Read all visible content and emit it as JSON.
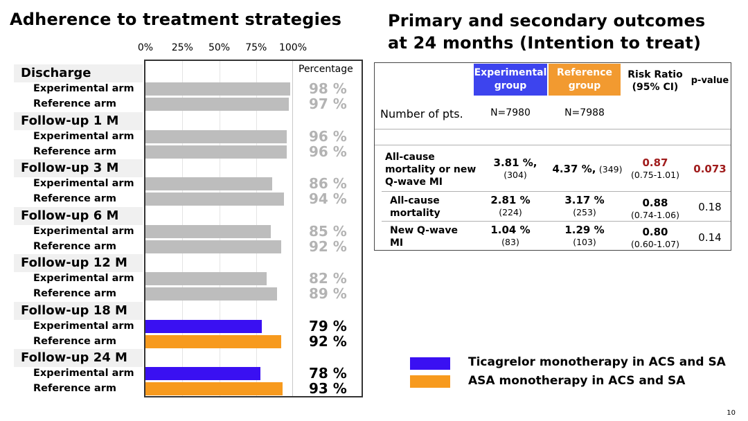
{
  "left_title": "Adherence to treatment strategies",
  "right_title_line1": "Primary and secondary outcomes",
  "right_title_line2": "at 24 months (Intention to treat)",
  "page_number": "10",
  "colors": {
    "gray": "#bdbdbd",
    "experimental": "#3a10f2",
    "reference": "#f79a1e",
    "red_value": "#a01c1c",
    "exp_header": "#3d44ee",
    "ref_header": "#f29a30"
  },
  "chart_data": {
    "type": "bar",
    "orientation": "horizontal",
    "title": "Adherence to treatment strategies",
    "column_header": "Percentage",
    "xlim": [
      0,
      100
    ],
    "x_ticks": [
      "0%",
      "25%",
      "50%",
      "75%",
      "100%"
    ],
    "groups": [
      {
        "label": "Discharge",
        "bars": [
          {
            "arm": "Experimental arm",
            "value": 98,
            "label": "98 %",
            "color": "gray"
          },
          {
            "arm": "Reference arm",
            "value": 97,
            "label": "97 %",
            "color": "gray"
          }
        ]
      },
      {
        "label": "Follow-up 1 M",
        "bars": [
          {
            "arm": "Experimental arm",
            "value": 96,
            "label": "96 %",
            "color": "gray"
          },
          {
            "arm": "Reference arm",
            "value": 96,
            "label": "96 %",
            "color": "gray"
          }
        ]
      },
      {
        "label": "Follow-up 3 M",
        "bars": [
          {
            "arm": "Experimental arm",
            "value": 86,
            "label": "86 %",
            "color": "gray"
          },
          {
            "arm": "Reference arm",
            "value": 94,
            "label": "94 %",
            "color": "gray"
          }
        ]
      },
      {
        "label": "Follow-up 6 M",
        "bars": [
          {
            "arm": "Experimental arm",
            "value": 85,
            "label": "85 %",
            "color": "gray"
          },
          {
            "arm": "Reference arm",
            "value": 92,
            "label": "92 %",
            "color": "gray"
          }
        ]
      },
      {
        "label": "Follow-up 12 M",
        "bars": [
          {
            "arm": "Experimental arm",
            "value": 82,
            "label": "82 %",
            "color": "gray"
          },
          {
            "arm": "Reference arm",
            "value": 89,
            "label": "89 %",
            "color": "gray"
          }
        ]
      },
      {
        "label": "Follow-up 18 M",
        "bars": [
          {
            "arm": "Experimental arm",
            "value": 79,
            "label": "79 %",
            "color": "experimental"
          },
          {
            "arm": "Reference arm",
            "value": 92,
            "label": "92 %",
            "color": "reference"
          }
        ]
      },
      {
        "label": "Follow-up 24 M",
        "bars": [
          {
            "arm": "Experimental arm",
            "value": 78,
            "label": "78 %",
            "color": "experimental"
          },
          {
            "arm": "Reference arm",
            "value": 93,
            "label": "93 %",
            "color": "reference"
          }
        ]
      }
    ]
  },
  "table": {
    "headers": {
      "experimental": "Experimental group",
      "reference": "Reference group",
      "risk_ratio": "Risk Ratio (95% CI)",
      "p_value": "p-value"
    },
    "number_of_pts": {
      "label": "Number of pts.",
      "experimental": "N=7980",
      "reference": "N=7988"
    },
    "rows": [
      {
        "label": "All-cause mortality or new Q-wave MI",
        "exp_pct": "3.81 %,",
        "exp_n": "(304)",
        "ref_pct": "4.37 %,",
        "ref_n": "(349)",
        "rr": "0.87",
        "ci": "(0.75-1.01)",
        "p": "0.073"
      },
      {
        "label": "All-cause mortality",
        "exp_pct": "2.81 %",
        "exp_n": "(224)",
        "ref_pct": "3.17 %",
        "ref_n": "(253)",
        "rr": "0.88",
        "ci": "(0.74-1.06)",
        "p": "0.18"
      },
      {
        "label": "New Q-wave MI",
        "exp_pct": "1.04 %",
        "exp_n": "(83)",
        "ref_pct": "1.29 %",
        "ref_n": "(103)",
        "rr": "0.80",
        "ci": "(0.60-1.07)",
        "p": "0.14"
      }
    ]
  },
  "legend": [
    {
      "label": "Ticagrelor monotherapy in ACS and SA",
      "color": "experimental"
    },
    {
      "label": "ASA monotherapy in ACS and SA",
      "color": "reference"
    }
  ]
}
